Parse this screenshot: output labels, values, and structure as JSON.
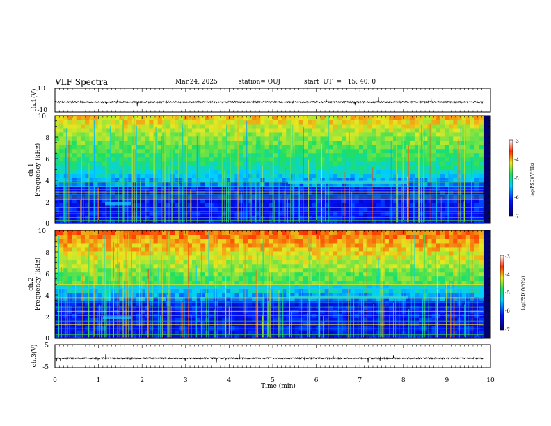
{
  "header": {
    "title": "VLF Spectra",
    "date": "Mar.24, 2025",
    "station": "station= OUJ",
    "start_ut": "start  UT  =   15: 40: 0"
  },
  "chart_data": [
    {
      "type": "line",
      "panel": "ch1-waveform",
      "ylabel": "ch.1(V)",
      "ylim": [
        -10,
        10
      ],
      "yticks": [
        "10",
        "-10"
      ],
      "x": [
        0,
        10
      ],
      "baseline_v": -1.5,
      "series_color": "#000000"
    },
    {
      "type": "heatmap",
      "panel": "ch1-spectrogram",
      "ylabel": "ch.1\nFrequency (kHz)",
      "ylim": [
        0,
        10
      ],
      "yticks": [
        "0",
        "2",
        "4",
        "6",
        "8",
        "10"
      ],
      "xlim": [
        0,
        10
      ],
      "data_end_min": 9.83,
      "colorbar": {
        "label": "log(PSD)(V²/Hz)",
        "range": [
          -7,
          -3
        ],
        "ticks": [
          "-3",
          "-4",
          "-5",
          "-6",
          "-7"
        ]
      },
      "features": {
        "lines_khz": [
          0.3,
          0.55,
          0.9,
          1.1,
          1.45,
          2.25,
          2.45,
          2.65,
          2.9,
          3.15,
          3.45,
          3.65,
          3.8,
          4.0
        ],
        "blob": {
          "t": [
            1.15,
            1.75
          ],
          "f": [
            1.65,
            2.0
          ]
        },
        "band": {
          "t": [
            5.35,
            8.1
          ],
          "f": [
            3.65,
            3.95
          ]
        }
      }
    },
    {
      "type": "heatmap",
      "panel": "ch2-spectrogram",
      "ylabel": "ch.2\nFrequency (kHz)",
      "ylim": [
        0,
        10
      ],
      "yticks": [
        "0",
        "2",
        "4",
        "6",
        "8",
        "10"
      ],
      "xlim": [
        0,
        10
      ],
      "data_end_min": 9.83,
      "colorbar": {
        "label": "log(PSD)(V²/Hz)",
        "range": [
          -7,
          -3
        ],
        "ticks": [
          "-3",
          "-4",
          "-5",
          "-6",
          "-7"
        ]
      },
      "features": {
        "lines_khz": [
          0.35,
          0.9,
          1.25,
          1.6,
          2.1,
          2.5,
          2.9,
          3.35,
          3.75,
          4.1,
          4.6,
          5.0
        ],
        "blob": {
          "t": [
            1.1,
            1.75
          ],
          "f": [
            1.75,
            2.05
          ]
        },
        "band": {
          "t": [
            5.4,
            8.1
          ],
          "f": [
            3.7,
            3.95
          ]
        }
      }
    },
    {
      "type": "line",
      "panel": "ch3-waveform",
      "ylabel": "ch.3(V)",
      "ylim": [
        -5,
        5
      ],
      "yticks": [
        "5",
        "-5"
      ],
      "x": [
        0,
        10
      ],
      "baseline_v": -1.0,
      "series_color": "#000000"
    }
  ],
  "xaxis": {
    "label": "Time (min)",
    "range": [
      0,
      10
    ],
    "ticks": [
      "0",
      "1",
      "2",
      "3",
      "4",
      "5",
      "6",
      "7",
      "8",
      "9",
      "10"
    ]
  },
  "colors": {
    "low": "#00007a",
    "mid": "#1fc8ff",
    "green": "#3cd23c",
    "high": "#ff1a00"
  }
}
